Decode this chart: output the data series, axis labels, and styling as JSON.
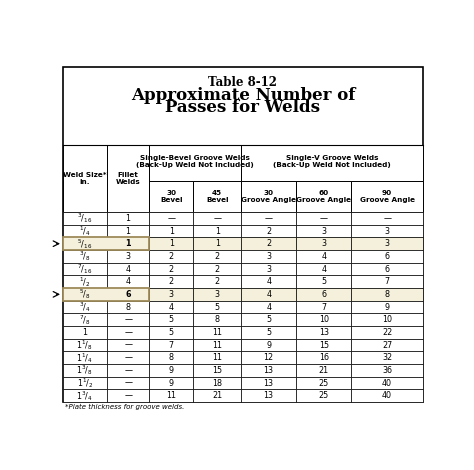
{
  "title_line1": "Table 8-12",
  "title_line2": "Approximate Number of",
  "title_line3": "Passes for Welds",
  "subheader1": "Single-Bevel Groove Welds\n(Back-Up Weld Not Included)",
  "subheader2": "Single-V Groove Welds\n(Back-Up Weld Not Included)",
  "rows": [
    [
      "3/16",
      "1",
      "—",
      "—",
      "—",
      "—",
      "—"
    ],
    [
      "1/4",
      "1",
      "1",
      "1",
      "2",
      "3",
      "3"
    ],
    [
      "5/16",
      "1",
      "1",
      "1",
      "2",
      "3",
      "3"
    ],
    [
      "3/8",
      "3",
      "2",
      "2",
      "3",
      "4",
      "6"
    ],
    [
      "7/16",
      "4",
      "2",
      "2",
      "3",
      "4",
      "6"
    ],
    [
      "1/2",
      "4",
      "2",
      "2",
      "4",
      "5",
      "7"
    ],
    [
      "5/8",
      "6",
      "3",
      "3",
      "4",
      "6",
      "8"
    ],
    [
      "3/4",
      "8",
      "4",
      "5",
      "4",
      "7",
      "9"
    ],
    [
      "7/8",
      "—",
      "5",
      "8",
      "5",
      "10",
      "10"
    ],
    [
      "1",
      "—",
      "5",
      "11",
      "5",
      "13",
      "22"
    ],
    [
      "11/8",
      "—",
      "7",
      "11",
      "9",
      "15",
      "27"
    ],
    [
      "11/4",
      "—",
      "8",
      "11",
      "12",
      "16",
      "32"
    ],
    [
      "13/8",
      "—",
      "9",
      "15",
      "13",
      "21",
      "36"
    ],
    [
      "11/2",
      "—",
      "9",
      "18",
      "13",
      "25",
      "40"
    ],
    [
      "13/4",
      "—",
      "11",
      "21",
      "13",
      "25",
      "40"
    ]
  ],
  "highlight_rows": [
    2,
    6
  ],
  "highlight_color": "#f5f0dc",
  "footnote": "*Plate thickness for groove welds.",
  "bg_color": "#ffffff"
}
